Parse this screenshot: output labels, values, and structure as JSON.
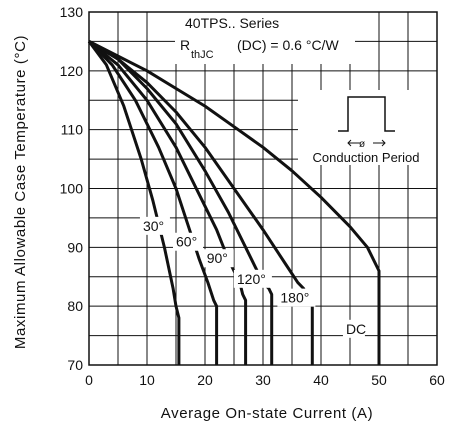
{
  "chart_data": {
    "type": "line",
    "xlabel": "Average On-state Current (A)",
    "ylabel": "Maximum Allowable Case Temperature (°C)",
    "xlim": [
      0,
      60
    ],
    "ylim": [
      70,
      130
    ],
    "xticks": [
      0,
      10,
      20,
      30,
      40,
      50,
      60
    ],
    "yticks": [
      70,
      80,
      90,
      100,
      110,
      120,
      130
    ],
    "grid": true,
    "annotations": {
      "series_name": "40TPS.. Series",
      "rthjc_prefix": "R",
      "rthjc_sub": "thJC",
      "rthjc_value": "(DC) = 0.6 °C/W",
      "phi": "ø",
      "conduction": "Conduction Period"
    },
    "series": [
      {
        "name": "30°",
        "points": [
          [
            0,
            125
          ],
          [
            3,
            121
          ],
          [
            6,
            114
          ],
          [
            9,
            105
          ],
          [
            11,
            98
          ],
          [
            13,
            90
          ],
          [
            14.5,
            83
          ],
          [
            15,
            80
          ],
          [
            15.5,
            78
          ],
          [
            15.5,
            70
          ]
        ]
      },
      {
        "name": "60°",
        "points": [
          [
            0,
            125
          ],
          [
            4,
            121
          ],
          [
            8,
            115
          ],
          [
            12,
            107
          ],
          [
            15,
            100
          ],
          [
            17,
            94
          ],
          [
            19,
            88
          ],
          [
            20.5,
            84
          ],
          [
            21.5,
            81
          ],
          [
            22,
            80
          ],
          [
            22,
            70
          ]
        ]
      },
      {
        "name": "90°",
        "points": [
          [
            0,
            125
          ],
          [
            5,
            121
          ],
          [
            10,
            115
          ],
          [
            15,
            107
          ],
          [
            19,
            99
          ],
          [
            22,
            93
          ],
          [
            24,
            88
          ],
          [
            25.5,
            85
          ],
          [
            26,
            84
          ],
          [
            26.5,
            82
          ],
          [
            27,
            81
          ],
          [
            27,
            70
          ]
        ]
      },
      {
        "name": "120°",
        "points": [
          [
            0,
            125
          ],
          [
            5,
            122
          ],
          [
            10,
            117
          ],
          [
            15,
            111
          ],
          [
            20,
            103
          ],
          [
            24,
            96
          ],
          [
            27,
            90
          ],
          [
            29,
            86
          ],
          [
            30,
            84
          ],
          [
            31,
            83
          ],
          [
            31.5,
            82
          ],
          [
            31.5,
            70
          ]
        ]
      },
      {
        "name": "180°",
        "points": [
          [
            0,
            125
          ],
          [
            5,
            122
          ],
          [
            10,
            118
          ],
          [
            15,
            113
          ],
          [
            20,
            107
          ],
          [
            25,
            100
          ],
          [
            30,
            93
          ],
          [
            34,
            87
          ],
          [
            36,
            84
          ],
          [
            37,
            83
          ],
          [
            38,
            81
          ],
          [
            38.5,
            80
          ],
          [
            38.5,
            70
          ]
        ]
      },
      {
        "name": "DC",
        "points": [
          [
            0,
            125
          ],
          [
            5,
            122.5
          ],
          [
            10,
            120
          ],
          [
            15,
            117
          ],
          [
            20,
            114
          ],
          [
            25,
            110.5
          ],
          [
            30,
            107
          ],
          [
            35,
            103
          ],
          [
            40,
            98.5
          ],
          [
            45,
            93.5
          ],
          [
            48,
            90
          ],
          [
            50,
            86
          ],
          [
            50,
            70
          ]
        ]
      }
    ],
    "curve_labels": [
      {
        "text": "30°",
        "x": 9.3,
        "y": 92.8
      },
      {
        "text": "60°",
        "x": 15.0,
        "y": 90.1
      },
      {
        "text": "90°",
        "x": 20.3,
        "y": 87.3
      },
      {
        "text": "120°",
        "x": 25.5,
        "y": 83.8
      },
      {
        "text": "180°",
        "x": 33.0,
        "y": 80.6
      },
      {
        "text": "DC",
        "x": 44.3,
        "y": 75.3
      }
    ]
  }
}
